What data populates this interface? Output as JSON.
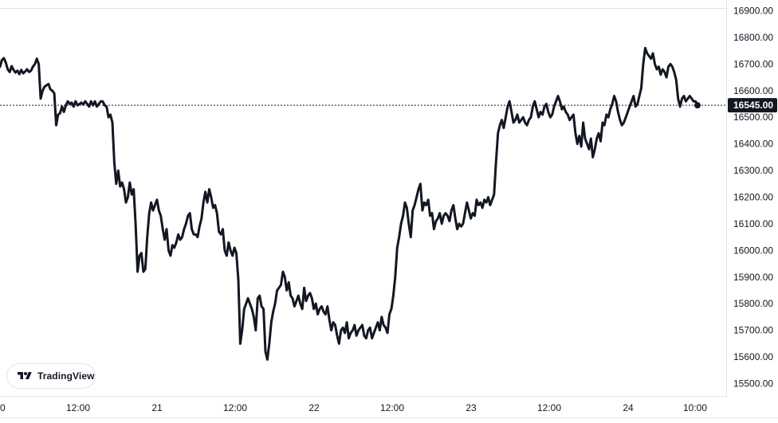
{
  "brand": {
    "name": "TradingView",
    "logo_icon": "tradingview-logo-icon"
  },
  "colors": {
    "line": "#131722",
    "background": "#ffffff",
    "axis_border": "#e0e3eb",
    "last_price_bg": "#131722",
    "last_price_text": "#ffffff"
  },
  "chart_data": {
    "type": "line",
    "title": "",
    "xlabel": "",
    "ylabel": "",
    "grid": false,
    "x_ticks": [
      "0",
      "12:00",
      "21",
      "12:00",
      "22",
      "12:00",
      "23",
      "12:00",
      "24",
      "10:00"
    ],
    "y_ticks": [
      "15500.00",
      "15600.00",
      "15700.00",
      "15800.00",
      "15900.00",
      "16000.00",
      "16100.00",
      "16200.00",
      "16300.00",
      "16400.00",
      "16500.00",
      "16600.00",
      "16700.00",
      "16800.00",
      "16900.00"
    ],
    "ylim": [
      15450,
      16920
    ],
    "last_price": {
      "value": 16545,
      "label": "16545.00"
    },
    "series": [
      {
        "values": [
          16690,
          16715,
          16722,
          16705,
          16680,
          16670,
          16692,
          16678,
          16668,
          16675,
          16662,
          16678,
          16665,
          16672,
          16680,
          16670,
          16675,
          16690,
          16700,
          16720,
          16700,
          16570,
          16600,
          16615,
          16620,
          16625,
          16605,
          16600,
          16590,
          16470,
          16510,
          16515,
          16540,
          16520,
          16545,
          16560,
          16550,
          16555,
          16540,
          16560,
          16545,
          16550,
          16555,
          16548,
          16560,
          16550,
          16540,
          16560,
          16545,
          16560,
          16540,
          16550,
          16560,
          16560,
          16545,
          16540,
          16500,
          16510,
          16480,
          16330,
          16250,
          16300,
          16240,
          16255,
          16230,
          16180,
          16200,
          16255,
          16210,
          16230,
          16100,
          15920,
          15980,
          15990,
          15920,
          15930,
          16050,
          16140,
          16180,
          16150,
          16170,
          16190,
          16150,
          16130,
          16080,
          16040,
          16080,
          16000,
          15980,
          16020,
          16010,
          16030,
          16060,
          16040,
          16050,
          16080,
          16100,
          16130,
          16140,
          16080,
          16060,
          16060,
          16050,
          16090,
          16120,
          16180,
          16220,
          16180,
          16230,
          16200,
          16160,
          16170,
          16140,
          16070,
          16060,
          16080,
          16000,
          15980,
          16030,
          16000,
          15980,
          16010,
          15990,
          15890,
          15650,
          15700,
          15780,
          15800,
          15820,
          15800,
          15780,
          15750,
          15700,
          15820,
          15830,
          15790,
          15780,
          15620,
          15590,
          15650,
          15730,
          15770,
          15800,
          15850,
          15860,
          15870,
          15920,
          15900,
          15850,
          15880,
          15830,
          15820,
          15790,
          15810,
          15830,
          15800,
          15780,
          15860,
          15810,
          15830,
          15840,
          15820,
          15780,
          15800,
          15760,
          15780,
          15790,
          15770,
          15760,
          15790,
          15740,
          15700,
          15730,
          15720,
          15680,
          15650,
          15700,
          15710,
          15690,
          15730,
          15670,
          15690,
          15700,
          15720,
          15680,
          15700,
          15710,
          15720,
          15680,
          15670,
          15700,
          15710,
          15670,
          15690,
          15710,
          15730,
          15700,
          15750,
          15720,
          15710,
          15690,
          15760,
          15780,
          15830,
          15900,
          16010,
          16050,
          16100,
          16130,
          16180,
          16160,
          16100,
          16050,
          16150,
          16170,
          16200,
          16230,
          16250,
          16150,
          16180,
          16170,
          16190,
          16130,
          16140,
          16080,
          16110,
          16120,
          16140,
          16100,
          16130,
          16140,
          16130,
          16110,
          16150,
          16170,
          16120,
          16080,
          16100,
          16090,
          16100,
          16140,
          16180,
          16150,
          16120,
          16140,
          16130,
          16190,
          16170,
          16180,
          16160,
          16190,
          16180,
          16200,
          16170,
          16190,
          16210,
          16330,
          16440,
          16470,
          16490,
          16460,
          16500,
          16540,
          16560,
          16520,
          16480,
          16490,
          16510,
          16480,
          16490,
          16500,
          16480,
          16470,
          16490,
          16500,
          16540,
          16560,
          16530,
          16500,
          16520,
          16510,
          16540,
          16550,
          16520,
          16500,
          16510,
          16540,
          16560,
          16580,
          16560,
          16530,
          16540,
          16520,
          16510,
          16490,
          16500,
          16510,
          16440,
          16400,
          16430,
          16390,
          16480,
          16420,
          16400,
          16380,
          16420,
          16350,
          16380,
          16420,
          16440,
          16410,
          16480,
          16470,
          16510,
          16500,
          16530,
          16550,
          16580,
          16560,
          16520,
          16490,
          16470,
          16480,
          16500,
          16520,
          16540,
          16560,
          16580,
          16540,
          16550,
          16580,
          16610,
          16700,
          16760,
          16740,
          16730,
          16720,
          16740,
          16700,
          16680,
          16690,
          16660,
          16680,
          16670,
          16650,
          16690,
          16700,
          16690,
          16670,
          16640,
          16570,
          16540,
          16570,
          16580,
          16560,
          16570,
          16580,
          16570,
          16560,
          16560,
          16545
        ]
      }
    ]
  }
}
